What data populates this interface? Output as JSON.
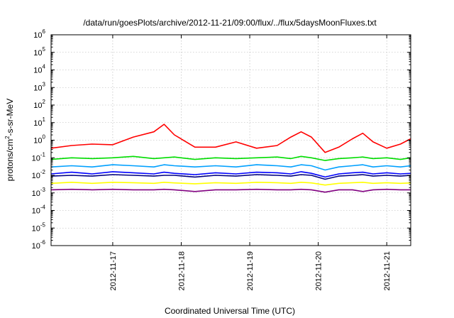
{
  "chart_data": {
    "type": "line",
    "title": "/data/run/goesPlots/archive/2012-11-21/09:00/flux/../flux/5daysMoonFluxes.txt",
    "xlabel": "Coordinated Universal Time (UTC)",
    "ylabel": "protons/cm2-s-sr-MeV",
    "ylabel_parts": {
      "base": "protons/cm",
      "exp": "2",
      "rest": "-s-sr-MeV"
    },
    "yscale": "log",
    "ylim": [
      1e-06,
      1000000.0
    ],
    "xlim": [
      16.1,
      21.35
    ],
    "grid": true,
    "x_ticks": [
      {
        "value": 17,
        "label": "2012-11-17"
      },
      {
        "value": 18,
        "label": "2012-11-18"
      },
      {
        "value": 19,
        "label": "2012-11-19"
      },
      {
        "value": 20,
        "label": "2012-11-20"
      },
      {
        "value": 21,
        "label": "2012-11-21"
      }
    ],
    "y_ticks": [
      {
        "value": 1e-06,
        "base": "10",
        "exp": "-6"
      },
      {
        "value": 1e-05,
        "base": "10",
        "exp": "-5"
      },
      {
        "value": 0.0001,
        "base": "10",
        "exp": "-4"
      },
      {
        "value": 0.001,
        "base": "10",
        "exp": "-3"
      },
      {
        "value": 0.01,
        "base": "10",
        "exp": "-2"
      },
      {
        "value": 0.1,
        "base": "10",
        "exp": "-1"
      },
      {
        "value": 1,
        "base": "10",
        "exp": "0"
      },
      {
        "value": 10,
        "base": "10",
        "exp": "1"
      },
      {
        "value": 100,
        "base": "10",
        "exp": "2"
      },
      {
        "value": 1000,
        "base": "10",
        "exp": "3"
      },
      {
        "value": 10000,
        "base": "10",
        "exp": "4"
      },
      {
        "value": 100000,
        "base": "10",
        "exp": "5"
      },
      {
        "value": 1000000,
        "base": "10",
        "exp": "6"
      }
    ],
    "x": [
      16.1,
      16.4,
      16.7,
      17.0,
      17.3,
      17.6,
      17.75,
      17.9,
      18.2,
      18.5,
      18.8,
      19.1,
      19.4,
      19.6,
      19.75,
      19.9,
      20.1,
      20.3,
      20.5,
      20.65,
      20.8,
      21.0,
      21.2,
      21.35
    ],
    "series": [
      {
        "color": "#ff0000",
        "values": [
          0.35,
          0.5,
          0.6,
          0.55,
          1.5,
          3.0,
          8.0,
          2.0,
          0.4,
          0.4,
          0.8,
          0.35,
          0.5,
          1.5,
          3.0,
          1.5,
          0.2,
          0.4,
          1.2,
          2.5,
          0.8,
          0.35,
          0.6,
          1.2
        ]
      },
      {
        "color": "#00dd00",
        "values": [
          0.08,
          0.1,
          0.09,
          0.1,
          0.12,
          0.09,
          0.1,
          0.11,
          0.08,
          0.1,
          0.09,
          0.1,
          0.11,
          0.09,
          0.12,
          0.1,
          0.07,
          0.09,
          0.1,
          0.11,
          0.09,
          0.1,
          0.08,
          0.1
        ]
      },
      {
        "color": "#00a0ff",
        "values": [
          0.03,
          0.035,
          0.03,
          0.04,
          0.035,
          0.03,
          0.04,
          0.035,
          0.03,
          0.035,
          0.03,
          0.04,
          0.035,
          0.03,
          0.04,
          0.035,
          0.02,
          0.03,
          0.035,
          0.04,
          0.03,
          0.035,
          0.03,
          0.035
        ]
      },
      {
        "color": "#0000ff",
        "values": [
          0.012,
          0.015,
          0.012,
          0.016,
          0.014,
          0.012,
          0.015,
          0.013,
          0.011,
          0.014,
          0.012,
          0.015,
          0.014,
          0.012,
          0.016,
          0.013,
          0.008,
          0.012,
          0.014,
          0.015,
          0.012,
          0.014,
          0.012,
          0.013
        ]
      },
      {
        "color": "#000080",
        "values": [
          0.009,
          0.01,
          0.009,
          0.011,
          0.01,
          0.009,
          0.01,
          0.01,
          0.008,
          0.01,
          0.009,
          0.011,
          0.01,
          0.009,
          0.011,
          0.01,
          0.006,
          0.009,
          0.01,
          0.011,
          0.009,
          0.01,
          0.009,
          0.01
        ]
      },
      {
        "color": "#ffff00",
        "values": [
          0.0035,
          0.004,
          0.0035,
          0.004,
          0.0038,
          0.0035,
          0.004,
          0.0037,
          0.0033,
          0.0038,
          0.0035,
          0.004,
          0.0038,
          0.0035,
          0.004,
          0.0037,
          0.0028,
          0.0035,
          0.0038,
          0.004,
          0.0035,
          0.0038,
          0.0035,
          0.0037
        ]
      },
      {
        "color": "#800080",
        "values": [
          0.0015,
          0.0016,
          0.0015,
          0.0016,
          0.0015,
          0.0015,
          0.0016,
          0.0015,
          0.0012,
          0.0015,
          0.0015,
          0.0016,
          0.0015,
          0.0015,
          0.0016,
          0.0015,
          0.0011,
          0.0015,
          0.0015,
          0.0012,
          0.0015,
          0.0016,
          0.0015,
          0.0015
        ]
      }
    ]
  }
}
